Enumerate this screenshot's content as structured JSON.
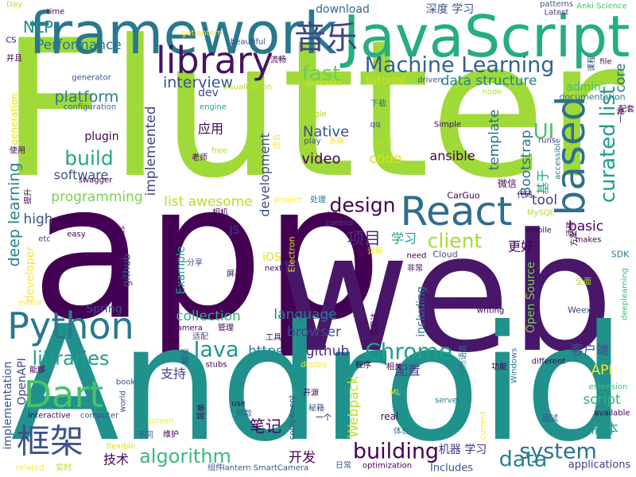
{
  "words": [
    {
      "text": "Flutter",
      "color": "#a0da39",
      "weight": 1.0
    },
    {
      "text": "app",
      "color": "#440154",
      "weight": 0.98
    },
    {
      "text": "web",
      "color": "#481769",
      "weight": 0.86
    },
    {
      "text": "Android",
      "color": "#21918c",
      "weight": 0.84
    },
    {
      "text": "framework",
      "color": "#2a788e",
      "weight": 0.52
    },
    {
      "text": "JavaScript",
      "color": "#26ad81",
      "weight": 0.52
    },
    {
      "text": "library",
      "color": "#471365",
      "weight": 0.36
    },
    {
      "text": "React",
      "color": "#2e6d8e",
      "weight": 0.36
    },
    {
      "text": "based",
      "color": "#2e6f8e",
      "weight": 0.34
    },
    {
      "text": "Python",
      "color": "#2a788e",
      "weight": 0.3
    },
    {
      "text": "Dart",
      "color": "#4ac16d",
      "weight": 0.28
    },
    {
      "text": "框架",
      "color": "#3b528b",
      "weight": 0.28
    },
    {
      "text": "音乐",
      "color": "#414487",
      "weight": 0.24
    },
    {
      "text": "Machine Learning",
      "color": "#33638d",
      "weight": 0.2
    },
    {
      "text": "curated list",
      "color": "#1f9e89",
      "weight": 0.2
    },
    {
      "text": "building",
      "color": "#440154",
      "weight": 0.16
    },
    {
      "text": "Chrome",
      "color": "#1fa187",
      "weight": 0.16
    },
    {
      "text": "system",
      "color": "#2c728e",
      "weight": 0.16
    },
    {
      "text": "data",
      "color": "#25848e",
      "weight": 0.15
    },
    {
      "text": "Java",
      "color": "#1f988b",
      "weight": 0.15
    },
    {
      "text": "build",
      "color": "#22a884",
      "weight": 0.14
    },
    {
      "text": "design",
      "color": "#440154",
      "weight": 0.14
    },
    {
      "text": "client",
      "color": "#a8db34",
      "weight": 0.14
    },
    {
      "text": "algorithm",
      "color": "#3aba76",
      "weight": 0.14
    },
    {
      "text": "libraries",
      "color": "#1f9e89",
      "weight": 0.14
    },
    {
      "text": "fast",
      "color": "#6ece58",
      "weight": 0.14
    },
    {
      "text": "UI",
      "color": "#48c16e",
      "weight": 0.14
    },
    {
      "text": "项目",
      "color": "#46327e",
      "weight": 0.12
    },
    {
      "text": "NLP",
      "color": "#21918c",
      "weight": 0.12
    },
    {
      "text": "interview",
      "color": "#3b528b",
      "weight": 0.11
    },
    {
      "text": "platform",
      "color": "#2a788e",
      "weight": 0.11
    },
    {
      "text": "deep learning",
      "color": "#26828e",
      "weight": 0.11
    },
    {
      "text": "Native",
      "color": "#3b528b",
      "weight": 0.1
    },
    {
      "text": "video",
      "color": "#440154",
      "weight": 0.1
    },
    {
      "text": "Performance",
      "color": "#2c728e",
      "weight": 0.1
    },
    {
      "text": "implemented",
      "color": "#414487",
      "weight": 0.1
    },
    {
      "text": "programming",
      "color": "#7ad151",
      "weight": 0.1
    },
    {
      "text": "list awesome",
      "color": "#b5de2b",
      "weight": 0.1
    },
    {
      "text": "data structure",
      "color": "#27808e",
      "weight": 0.1
    },
    {
      "text": "language",
      "color": "#287c8e",
      "weight": 0.1
    },
    {
      "text": "browser",
      "color": "#3e4a89",
      "weight": 0.1
    },
    {
      "text": "collection",
      "color": "#2db27d",
      "weight": 0.1
    },
    {
      "text": "core",
      "color": "#2e6f8e",
      "weight": 0.1
    },
    {
      "text": "basic",
      "color": "#440154",
      "weight": 0.1
    },
    {
      "text": "tool",
      "color": "#443a83",
      "weight": 0.1
    },
    {
      "text": "API",
      "color": "#fde725",
      "weight": 0.1
    },
    {
      "text": "script",
      "color": "#2db27d",
      "weight": 0.1
    },
    {
      "text": "版本",
      "color": "#1f9e89",
      "weight": 0.1
    },
    {
      "text": "笔记",
      "color": "#440154",
      "weight": 0.1
    },
    {
      "text": "开发",
      "color": "#440154",
      "weight": 0.08
    },
    {
      "text": "https",
      "color": "#25858e",
      "weight": 0.09
    },
    {
      "text": "github",
      "color": "#482878",
      "weight": 0.09
    },
    {
      "text": "Webpack",
      "color": "#bddf26",
      "weight": 0.09
    },
    {
      "text": "template",
      "color": "#2e6d8e",
      "weight": 0.09
    },
    {
      "text": "Bootstrap",
      "color": "#2e6f8e",
      "weight": 0.09
    },
    {
      "text": "high",
      "color": "#3b528b",
      "weight": 0.09
    },
    {
      "text": "code",
      "color": "#d8e219",
      "weight": 0.09
    },
    {
      "text": "software",
      "color": "#3b528b",
      "weight": 0.08
    },
    {
      "text": "development",
      "color": "#3e4a89",
      "weight": 0.08
    },
    {
      "text": "ansible",
      "color": "#440154",
      "weight": 0.08
    },
    {
      "text": "配置",
      "color": "#414487",
      "weight": 0.08
    },
    {
      "text": "支持",
      "color": "#424086",
      "weight": 0.08
    },
    {
      "text": "客户端",
      "color": "#3b528b",
      "weight": 0.08
    },
    {
      "text": "技术",
      "color": "#440154",
      "weight": 0.08
    },
    {
      "text": "应用",
      "color": "#440154",
      "weight": 0.08
    },
    {
      "text": "更好",
      "color": "#440154",
      "weight": 0.08
    },
    {
      "text": "学习",
      "color": "#1f9e89",
      "weight": 0.08
    },
    {
      "text": "基于",
      "color": "#20a386",
      "weight": 0.07
    },
    {
      "text": "download",
      "color": "#31688e",
      "weight": 0.07
    },
    {
      "text": "深度 学习",
      "color": "#3b528b",
      "weight": 0.07
    },
    {
      "text": "tutorial",
      "color": "#d0e11c",
      "weight": 0.07
    },
    {
      "text": "dev",
      "color": "#3e4a89",
      "weight": 0.07
    },
    {
      "text": "plugin",
      "color": "#440154",
      "weight": 0.07
    },
    {
      "text": "developer",
      "color": "#fde725",
      "weight": 0.07
    },
    {
      "text": "Example",
      "color": "#1f9e89",
      "weight": 0.07
    },
    {
      "text": "Open Source",
      "color": "#7ad151",
      "weight": 0.07
    },
    {
      "text": "including",
      "color": "#2c728e",
      "weight": 0.07
    },
    {
      "text": "implementation",
      "color": "#3b528b",
      "weight": 0.07
    },
    {
      "text": "OpenAPI",
      "color": "#3e4a89",
      "weight": 0.07
    },
    {
      "text": "机器 学习",
      "color": "#46327e",
      "weight": 0.07
    },
    {
      "text": "admin",
      "color": "#3fbc73",
      "weight": 0.07
    },
    {
      "text": "generation",
      "color": "#e5e419",
      "weight": 0.06
    },
    {
      "text": "github",
      "color": "#3b528b",
      "weight": 0.06
    },
    {
      "text": "iOS",
      "color": "#d8e219",
      "weight": 0.06
    },
    {
      "text": "JS",
      "color": "#443a83",
      "weight": 0.06
    },
    {
      "text": "applications",
      "color": "#443a83",
      "weight": 0.06
    },
    {
      "text": "Spring",
      "color": "#3e4a89",
      "weight": 0.06
    },
    {
      "text": "Includes",
      "color": "#3b528b",
      "weight": 0.06
    },
    {
      "text": "微信",
      "color": "#440154",
      "weight": 0.06
    },
    {
      "text": "real",
      "color": "#440154",
      "weight": 0.06
    },
    {
      "text": "documentation",
      "color": "#2a788e",
      "weight": 0.05
    },
    {
      "text": "Electron",
      "color": "#e5e419",
      "weight": 0.05
    },
    {
      "text": "SDK",
      "color": "#2a788e",
      "weight": 0.05
    },
    {
      "text": "CarGuo",
      "color": "#440154",
      "weight": 0.05
    },
    {
      "text": "Cloud",
      "color": "#3e4a89",
      "weight": 0.05
    },
    {
      "text": "configuration",
      "color": "#31688e",
      "weight": 0.05
    },
    {
      "text": "generator",
      "color": "#3b528b",
      "weight": 0.05
    },
    {
      "text": "visualization",
      "color": "#b5de2b",
      "weight": 0.05
    },
    {
      "text": "Weex",
      "color": "#3e4a89",
      "weight": 0.05
    },
    {
      "text": "Simple",
      "color": "#440154",
      "weight": 0.05
    },
    {
      "text": "MySQL",
      "color": "#a8db34",
      "weight": 0.05
    },
    {
      "text": "engine",
      "color": "#1f9e89",
      "weight": 0.05
    },
    {
      "text": "extension",
      "color": "#3fbc73",
      "weight": 0.05
    },
    {
      "text": "deeplearning",
      "color": "#3fbc73",
      "weight": 0.05
    },
    {
      "text": "patterns",
      "color": "#3b528b",
      "weight": 0.05
    },
    {
      "text": "Latest",
      "color": "#443a83",
      "weight": 0.05
    },
    {
      "text": "Anki Science",
      "color": "#4ac16d",
      "weight": 0.05
    },
    {
      "text": "getlantern",
      "color": "#fde725",
      "weight": 0.05
    },
    {
      "text": "beautiful",
      "color": "#3e4a89",
      "weight": 0.05
    },
    {
      "text": "CS",
      "color": "#440154",
      "weight": 0.05
    },
    {
      "text": "Day",
      "color": "#b5de2b",
      "weight": 0.05
    },
    {
      "text": "time",
      "color": "#440154",
      "weight": 0.05
    },
    {
      "text": "流畅",
      "color": "#440154",
      "weight": 0.05
    },
    {
      "text": "并且",
      "color": "#440154",
      "weight": 0.05
    },
    {
      "text": "generate",
      "color": "#d8e219",
      "weight": 0.05
    },
    {
      "text": "driven",
      "color": "#3b528b",
      "weight": 0.05
    },
    {
      "text": "file",
      "color": "#440154",
      "weight": 0.05
    },
    {
      "text": "node",
      "color": "#b5de2b",
      "weight": 0.05
    },
    {
      "text": "下载",
      "color": "#2a788e",
      "weight": 0.05
    },
    {
      "text": "Google",
      "color": "#a8db34",
      "weight": 0.05
    },
    {
      "text": "Git",
      "color": "#b5de2b",
      "weight": 0.05
    },
    {
      "text": "qq",
      "color": "#3e4a89",
      "weight": 0.05
    },
    {
      "text": "play",
      "color": "#3e4a89",
      "weight": 0.05
    },
    {
      "text": "多端",
      "color": "#fde725",
      "weight": 0.05
    },
    {
      "text": "中国",
      "color": "#b5de2b",
      "weight": 0.05
    },
    {
      "text": "free",
      "color": "#a8db34",
      "weight": 0.05
    },
    {
      "text": "老师",
      "color": "#440154",
      "weight": 0.05
    },
    {
      "text": "accessible",
      "color": "#2a788e",
      "weight": 0.05
    },
    {
      "text": "runs",
      "color": "#443a83",
      "weight": 0.05
    },
    {
      "text": "swagger",
      "color": "#440154",
      "weight": 0.05
    },
    {
      "text": "project",
      "color": "#fde725",
      "weight": 0.05
    },
    {
      "text": "处理",
      "color": "#2a788e",
      "weight": 0.05
    },
    {
      "text": "代码",
      "color": "#440154",
      "weight": 0.05
    },
    {
      "text": "相机",
      "color": "#440154",
      "weight": 0.05
    },
    {
      "text": "个人",
      "color": "#440154",
      "weight": 0.05
    },
    {
      "text": "flashcards",
      "color": "#440154",
      "weight": 0.05
    },
    {
      "text": "easy",
      "color": "#440154",
      "weight": 0.05
    },
    {
      "text": "control",
      "color": "#3e4a89",
      "weight": 0.05
    },
    {
      "text": "etc",
      "color": "#443a83",
      "weight": 0.05
    },
    {
      "text": "mobile",
      "color": "#440154",
      "weight": 0.05
    },
    {
      "text": "makes",
      "color": "#440154",
      "weight": 0.05
    },
    {
      "text": "分享",
      "color": "#3b528b",
      "weight": 0.05
    },
    {
      "text": "详解",
      "color": "#fde725",
      "weight": 0.05
    },
    {
      "text": "need",
      "color": "#440154",
      "weight": 0.05
    },
    {
      "text": "非常",
      "color": "#440154",
      "weight": 0.05
    },
    {
      "text": "屏幕",
      "color": "#440154",
      "weight": 0.05
    },
    {
      "text": "next",
      "color": "#440154",
      "weight": 0.05
    },
    {
      "text": "全面",
      "color": "#a8db34",
      "weight": 0.05
    },
    {
      "text": "editor",
      "color": "#fde725",
      "weight": 0.05
    },
    {
      "text": "camera",
      "color": "#440154",
      "weight": 0.05
    },
    {
      "text": "管理",
      "color": "#440154",
      "weight": 0.05
    },
    {
      "text": "适配",
      "color": "#3b528b",
      "weight": 0.05
    },
    {
      "text": "工具",
      "color": "#440154",
      "weight": 0.05
    },
    {
      "text": "能够",
      "color": "#440154",
      "weight": 0.05
    },
    {
      "text": "翻译",
      "color": "#3b528b",
      "weight": 0.05
    },
    {
      "text": "stubs",
      "color": "#440154",
      "weight": 0.05
    },
    {
      "text": "deploy",
      "color": "#fde725",
      "weight": 0.05
    },
    {
      "text": "程序",
      "color": "#440154",
      "weight": 0.05
    },
    {
      "text": "相关",
      "color": "#440154",
      "weight": 0.05
    },
    {
      "text": "自然语言",
      "color": "#2a788e",
      "weight": 0.05
    },
    {
      "text": "Windows",
      "color": "#2a788e",
      "weight": 0.05
    },
    {
      "text": "功能",
      "color": "#440154",
      "weight": 0.05
    },
    {
      "text": "different",
      "color": "#440154",
      "weight": 0.05
    },
    {
      "text": "book",
      "color": "#3b528b",
      "weight": 0.05
    },
    {
      "text": "world",
      "color": "#3b528b",
      "weight": 0.05
    },
    {
      "text": "开源",
      "color": "#440154",
      "weight": 0.05
    },
    {
      "text": "ML",
      "color": "#fde725",
      "weight": 0.05
    },
    {
      "text": "server",
      "color": "#2a788e",
      "weight": 0.05
    },
    {
      "text": "秘籍",
      "color": "#3b528b",
      "weight": 0.05
    },
    {
      "text": "一个",
      "color": "#440154",
      "weight": 0.05
    },
    {
      "text": "component",
      "color": "#3b528b",
      "weight": 0.05
    },
    {
      "text": "use",
      "color": "#440154",
      "weight": 0.05
    },
    {
      "text": "同款",
      "color": "#3b528b",
      "weight": 0.05
    },
    {
      "text": "interactive",
      "color": "#440154",
      "weight": 0.05
    },
    {
      "text": "computer",
      "color": "#3b528b",
      "weight": 0.05
    },
    {
      "text": "screen",
      "color": "#fde725",
      "weight": 0.05
    },
    {
      "text": "flexible",
      "color": "#d8e219",
      "weight": 0.05
    },
    {
      "text": "不同",
      "color": "#3b528b",
      "weight": 0.05
    },
    {
      "text": "维护",
      "color": "#440154",
      "weight": 0.05
    },
    {
      "text": "体验",
      "color": "#2a788e",
      "weight": 0.05
    },
    {
      "text": "current",
      "color": "#fde725",
      "weight": 0.05
    },
    {
      "text": "面试",
      "color": "#3b528b",
      "weight": 0.05
    },
    {
      "text": "available",
      "color": "#440154",
      "weight": 0.05
    },
    {
      "text": "related",
      "color": "#fde725",
      "weight": 0.05
    },
    {
      "text": "实时",
      "color": "#a8db34",
      "weight": 0.05
    },
    {
      "text": "组件",
      "color": "#3b528b",
      "weight": 0.05
    },
    {
      "text": "lantern SmartCamera",
      "color": "#3b528b",
      "weight": 0.05
    },
    {
      "text": "日常",
      "color": "#3b528b",
      "weight": 0.05
    },
    {
      "text": "optimization",
      "color": "#440154",
      "weight": 0.05
    },
    {
      "text": "writing",
      "color": "#440154",
      "weight": 0.05
    },
    {
      "text": "使用",
      "color": "#440154",
      "weight": 0.05
    },
    {
      "text": "一款",
      "color": "#440154",
      "weight": 0.05
    },
    {
      "text": "配套",
      "color": "#440154",
      "weight": 0.05
    },
    {
      "text": "课程",
      "color": "#3b528b",
      "weight": 0.05
    },
    {
      "text": "方案",
      "color": "#440154",
      "weight": 0.05
    },
    {
      "text": "迁移",
      "color": "#440154",
      "weight": 0.05
    },
    {
      "text": "吴恩达",
      "color": "#440154",
      "weight": 0.05
    },
    {
      "text": "提升",
      "color": "#440154",
      "weight": 0.05
    },
    {
      "text": "简单",
      "color": "#440154",
      "weight": 0.05
    },
    {
      "text": "适合",
      "color": "#fde725",
      "weight": 0.05
    }
  ]
}
